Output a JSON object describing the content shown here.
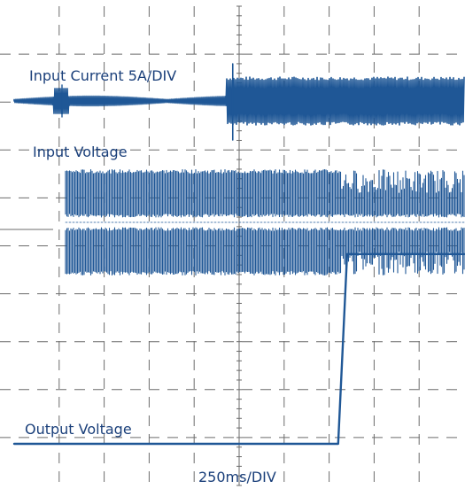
{
  "chart_data": {
    "type": "line",
    "title": "",
    "xlabel": "250ms/DIV",
    "grid": true,
    "divisions": {
      "x": 10,
      "y": 10
    },
    "x_unit": "ms",
    "x_per_div": 250,
    "xlim": [
      0,
      2500
    ],
    "series": [
      {
        "name": "Input Current 5A/DIV",
        "label": "Input Current 5A/DIV",
        "description_level_div": 1.2,
        "segments": [
          {
            "t_start": 0,
            "t_end": 1180,
            "amplitude_div": 0.1
          },
          {
            "t_start": 1180,
            "t_end": 2500,
            "amplitude_div": 0.5
          }
        ]
      },
      {
        "name": "Input Voltage",
        "label": "Input Voltage",
        "segments": [
          {
            "t_start": 0,
            "t_end": 250,
            "amplitude_div": 0
          },
          {
            "t_start": 250,
            "t_end": 2500,
            "amplitude_div": 1.1
          }
        ]
      },
      {
        "name": "Output Voltage",
        "label": "Output Voltage",
        "x": [
          0,
          1800,
          1850,
          2500
        ],
        "levels_div": [
          0,
          0,
          4,
          4
        ]
      }
    ]
  },
  "colors": {
    "trace": "#1f5796",
    "grid": "#6b6b6b",
    "label": "#1a3f7a",
    "background": "#ffffff"
  },
  "labels": {
    "input_current": "Input Current 5A/DIV",
    "input_voltage": "Input Voltage",
    "output_voltage": "Output Voltage",
    "timebase": "250ms/DIV"
  }
}
